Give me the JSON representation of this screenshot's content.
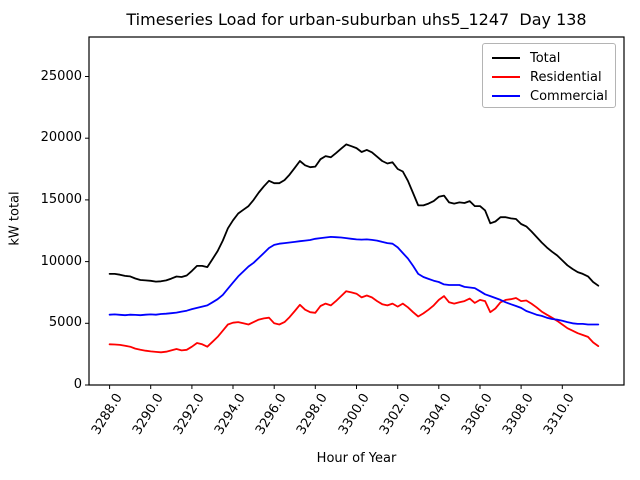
{
  "chart_data": {
    "type": "line",
    "title": "Timeseries Load for urban-suburban uhs5_1247  Day 138",
    "xlabel": "Hour of Year",
    "ylabel": "kW total",
    "xlim": [
      3287.0,
      3313.0
    ],
    "ylim": [
      0,
      28200
    ],
    "grid": false,
    "legend_position": "upper right",
    "x_ticks": [
      3288,
      3290,
      3292,
      3294,
      3296,
      3298,
      3300,
      3302,
      3304,
      3306,
      3308,
      3310
    ],
    "x_tick_labels": [
      "3288.0",
      "3290.0",
      "3292.0",
      "3294.0",
      "3296.0",
      "3298.0",
      "3300.0",
      "3302.0",
      "3304.0",
      "3306.0",
      "3308.0",
      "3310.0"
    ],
    "y_ticks": [
      0,
      5000,
      10000,
      15000,
      20000,
      25000
    ],
    "y_tick_labels": [
      "0",
      "5000",
      "10000",
      "15000",
      "20000",
      "25000"
    ],
    "x": [
      3288.0,
      3288.25,
      3288.5,
      3288.75,
      3289.0,
      3289.25,
      3289.5,
      3289.75,
      3290.0,
      3290.25,
      3290.5,
      3290.75,
      3291.0,
      3291.25,
      3291.5,
      3291.75,
      3292.0,
      3292.25,
      3292.5,
      3292.75,
      3293.0,
      3293.25,
      3293.5,
      3293.75,
      3294.0,
      3294.25,
      3294.5,
      3294.75,
      3295.0,
      3295.25,
      3295.5,
      3295.75,
      3296.0,
      3296.25,
      3296.5,
      3296.75,
      3297.0,
      3297.25,
      3297.5,
      3297.75,
      3298.0,
      3298.25,
      3298.5,
      3298.75,
      3299.0,
      3299.25,
      3299.5,
      3299.75,
      3300.0,
      3300.25,
      3300.5,
      3300.75,
      3301.0,
      3301.25,
      3301.5,
      3301.75,
      3302.0,
      3302.25,
      3302.5,
      3302.75,
      3303.0,
      3303.25,
      3303.5,
      3303.75,
      3304.0,
      3304.25,
      3304.5,
      3304.75,
      3305.0,
      3305.25,
      3305.5,
      3305.75,
      3306.0,
      3306.25,
      3306.5,
      3306.75,
      3307.0,
      3307.25,
      3307.5,
      3307.75,
      3308.0,
      3308.25,
      3308.5,
      3308.75,
      3309.0,
      3309.25,
      3309.5,
      3309.75,
      3310.0,
      3310.25,
      3310.5,
      3310.75,
      3311.0,
      3311.25,
      3311.5,
      3311.75
    ],
    "series": [
      {
        "name": "Total",
        "color": "#000000",
        "values": [
          9000,
          9000,
          8940,
          8840,
          8800,
          8630,
          8510,
          8480,
          8440,
          8380,
          8400,
          8480,
          8620,
          8790,
          8750,
          8870,
          9250,
          9650,
          9650,
          9550,
          10200,
          10850,
          11700,
          12700,
          13350,
          13900,
          14200,
          14500,
          15000,
          15600,
          16100,
          16550,
          16350,
          16350,
          16600,
          17050,
          17600,
          18150,
          17800,
          17650,
          17700,
          18300,
          18550,
          18450,
          18780,
          19150,
          19500,
          19350,
          19200,
          18880,
          19050,
          18860,
          18500,
          18150,
          17950,
          18050,
          17500,
          17300,
          16550,
          15550,
          14550,
          14550,
          14700,
          14900,
          15250,
          15350,
          14800,
          14700,
          14800,
          14750,
          14900,
          14500,
          14500,
          14150,
          13100,
          13250,
          13600,
          13600,
          13500,
          13450,
          13050,
          12850,
          12450,
          12000,
          11550,
          11150,
          10800,
          10500,
          10100,
          9700,
          9400,
          9150,
          9000,
          8800,
          8350,
          8050
        ]
      },
      {
        "name": "Residential",
        "color": "#ff0000",
        "values": [
          3300,
          3280,
          3250,
          3180,
          3100,
          2950,
          2850,
          2780,
          2720,
          2680,
          2650,
          2700,
          2800,
          2920,
          2800,
          2850,
          3100,
          3400,
          3300,
          3100,
          3500,
          3900,
          4400,
          4900,
          5050,
          5100,
          5000,
          4900,
          5100,
          5300,
          5400,
          5450,
          5000,
          4900,
          5100,
          5500,
          6000,
          6500,
          6100,
          5900,
          5850,
          6400,
          6600,
          6450,
          6800,
          7200,
          7600,
          7500,
          7400,
          7100,
          7250,
          7100,
          6800,
          6550,
          6450,
          6600,
          6350,
          6600,
          6300,
          5900,
          5550,
          5800,
          6100,
          6450,
          6900,
          7200,
          6700,
          6600,
          6700,
          6800,
          7000,
          6650,
          6900,
          6800,
          5900,
          6200,
          6700,
          6900,
          6950,
          7050,
          6800,
          6850,
          6600,
          6300,
          5950,
          5700,
          5450,
          5200,
          4900,
          4600,
          4400,
          4200,
          4050,
          3900,
          3450,
          3150
        ]
      },
      {
        "name": "Commercial",
        "color": "#0000ff",
        "values": [
          5700,
          5720,
          5690,
          5660,
          5700,
          5680,
          5660,
          5700,
          5720,
          5700,
          5750,
          5780,
          5820,
          5870,
          5950,
          6020,
          6150,
          6250,
          6350,
          6450,
          6700,
          6950,
          7300,
          7800,
          8300,
          8800,
          9200,
          9600,
          9900,
          10300,
          10700,
          11100,
          11350,
          11450,
          11500,
          11550,
          11600,
          11650,
          11700,
          11750,
          11850,
          11900,
          11950,
          12000,
          11980,
          11950,
          11900,
          11850,
          11800,
          11780,
          11800,
          11760,
          11700,
          11600,
          11500,
          11450,
          11150,
          10700,
          10250,
          9650,
          9000,
          8750,
          8600,
          8450,
          8350,
          8150,
          8100,
          8100,
          8100,
          7950,
          7900,
          7850,
          7600,
          7350,
          7200,
          7050,
          6900,
          6700,
          6550,
          6400,
          6250,
          6000,
          5850,
          5700,
          5600,
          5450,
          5350,
          5300,
          5200,
          5100,
          5000,
          4950,
          4950,
          4900,
          4900,
          4900
        ]
      }
    ]
  }
}
